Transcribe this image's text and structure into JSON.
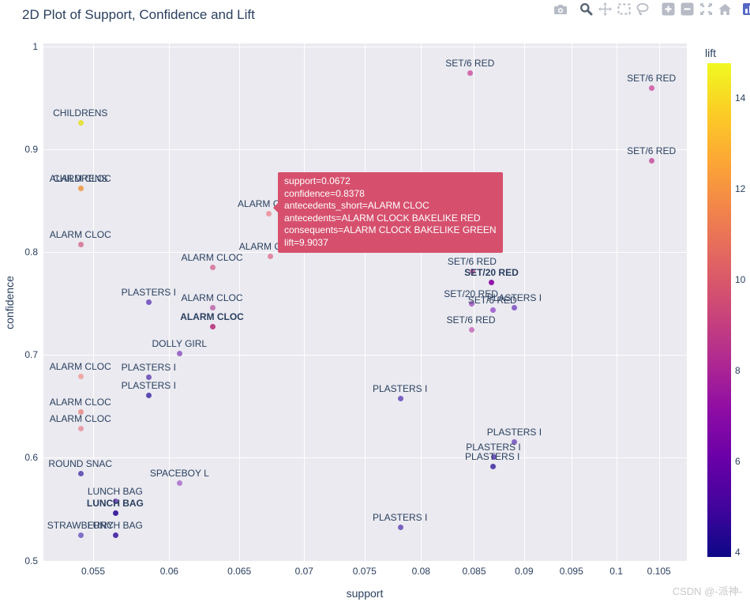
{
  "header": {
    "title": "2D Plot of Support, Confidence and Lift"
  },
  "watermark": {
    "text": "CSDN @-派神-"
  },
  "colors": {
    "text": "#2a3f5f",
    "plot_bg": "#eaeaf0",
    "grid": "#ffffff",
    "tooltip_bg": "#d6506e",
    "modebar_icon": "#b6bbc5",
    "modebar_icon_active": "#5a6576",
    "logo_blue": "#5668c5"
  },
  "chart_data": {
    "type": "scatter",
    "title": "2D Plot of Support, Confidence and Lift",
    "xlabel": "support",
    "ylabel": "confidence",
    "x_scale": "log",
    "x_range": [
      0.05196,
      0.1084
    ],
    "y_range": [
      0.4997,
      1.003
    ],
    "x_ticks": {
      "values": [
        0.055,
        0.06,
        0.065,
        0.07,
        0.075,
        0.08,
        0.085,
        0.09,
        0.095,
        0.1,
        0.105
      ],
      "labels": [
        "0.055",
        "0.06",
        "0.065",
        "0.07",
        "0.075",
        "0.08",
        "0.085",
        "0.09",
        "0.095",
        "0.1",
        "0.105"
      ]
    },
    "y_ticks": {
      "values": [
        0.5,
        0.6,
        0.7,
        0.8,
        0.9,
        1.0
      ],
      "labels": [
        "0.5",
        "0.6",
        "0.7",
        "0.8",
        "0.9",
        "1"
      ]
    },
    "grid": true,
    "colorbar": {
      "title": "lift",
      "range": [
        3.91,
        14.78
      ],
      "ticks": [
        4,
        6,
        8,
        10,
        12,
        14
      ],
      "colormap": "plasma",
      "colors_top_to_bottom": [
        "#f0f921",
        "#fccd25",
        "#fca636",
        "#f1834b",
        "#e16462",
        "#cc4778",
        "#b12a90",
        "#8f0da4",
        "#6a00a8",
        "#41049d",
        "#0d0887"
      ]
    },
    "tooltip": {
      "lines": [
        "support=0.0672",
        "confidence=0.8378",
        "antecedents_short=ALARM CLOC",
        "antecedents=ALARM CLOCK BAKELIKE RED",
        "consequents=ALARM CLOCK BAKELIKE GREEN",
        "lift=9.9037"
      ],
      "lift": 9.9037
    },
    "points": [
      {
        "label": "CHILDRENS",
        "support": 0.0542,
        "confidence": 0.9262,
        "color": "#e5e13e"
      },
      {
        "label": "ALARM CLOC",
        "support": 0.0542,
        "confidence": 0.8624,
        "color": "#efa35b"
      },
      {
        "label": "CHILDRENS",
        "support": 0.0542,
        "confidence": 0.8624,
        "color": "#efa35b"
      },
      {
        "label": "ALARM CLOC",
        "support": 0.0542,
        "confidence": 0.8078,
        "color": "#d9829d"
      },
      {
        "label": "ALARM CLOC",
        "support": 0.063,
        "confidence": 0.7856,
        "color": "#d981a2"
      },
      {
        "label": "ALARM CLOC",
        "support": 0.0672,
        "confidence": 0.8378,
        "color": "#ec9aa6",
        "hovered": true
      },
      {
        "label": "ALARM CLOC",
        "support": 0.0673,
        "confidence": 0.7963,
        "color": "#e089a4"
      },
      {
        "label": "SET/6 RED",
        "support": 0.0846,
        "confidence": 0.9746,
        "color": "#d26bad"
      },
      {
        "label": "SET/6 RED",
        "support": 0.1041,
        "confidence": 0.96,
        "color": "#d26bad"
      },
      {
        "label": "SET/6 RED",
        "support": 0.1041,
        "confidence": 0.8893,
        "color": "#cd66a9"
      },
      {
        "label": "SET/6 RED",
        "support": 0.0848,
        "confidence": 0.7817,
        "color": "#d573ae"
      },
      {
        "label": "SET/20 RED",
        "support": 0.0867,
        "confidence": 0.771,
        "color": "#9016a8",
        "bold": true
      },
      {
        "label": "SET/20 RED",
        "support": 0.0847,
        "confidence": 0.7502,
        "color": "#b06cc8"
      },
      {
        "label": "PLASTERS I",
        "support": 0.089,
        "confidence": 0.7464,
        "color": "#8a63c8"
      },
      {
        "label": "SET/6 RED",
        "support": 0.0868,
        "confidence": 0.7441,
        "color": "#a66bd2"
      },
      {
        "label": "SET/6 RED",
        "support": 0.0847,
        "confidence": 0.7249,
        "color": "#cb7fc4"
      },
      {
        "label": "PLASTERS I",
        "support": 0.0586,
        "confidence": 0.7518,
        "color": "#7b5fc0"
      },
      {
        "label": "ALARM CLOC",
        "support": 0.063,
        "confidence": 0.7464,
        "color": "#c579b2"
      },
      {
        "label": "ALARM CLOC",
        "support": 0.063,
        "confidence": 0.728,
        "color": "#bc4489",
        "bold": true
      },
      {
        "label": "DOLLY GIRL",
        "support": 0.0607,
        "confidence": 0.7018,
        "color": "#9d6ac9"
      },
      {
        "label": "ALARM CLOC",
        "support": 0.0542,
        "confidence": 0.6796,
        "color": "#efa9a5"
      },
      {
        "label": "PLASTERS I",
        "support": 0.0586,
        "confidence": 0.6788,
        "color": "#7b5fc0"
      },
      {
        "label": "PLASTERS I",
        "support": 0.0586,
        "confidence": 0.6611,
        "color": "#5d4ab2"
      },
      {
        "label": "ALARM CLOC",
        "support": 0.0542,
        "confidence": 0.645,
        "color": "#e89898"
      },
      {
        "label": "ALARM CLOC",
        "support": 0.0542,
        "confidence": 0.6288,
        "color": "#e89fab"
      },
      {
        "label": "PLASTERS I",
        "support": 0.0781,
        "confidence": 0.658,
        "color": "#7a62c2"
      },
      {
        "label": "PLASTERS I",
        "support": 0.089,
        "confidence": 0.6158,
        "color": "#8566c4"
      },
      {
        "label": "PLASTERS I",
        "support": 0.0869,
        "confidence": 0.6012,
        "color": "#6d56ba"
      },
      {
        "label": "PLASTERS I",
        "support": 0.0868,
        "confidence": 0.592,
        "color": "#5646ac"
      },
      {
        "label": "ROUND SNAC",
        "support": 0.0542,
        "confidence": 0.585,
        "color": "#6c5bb5"
      },
      {
        "label": "SPACEBOY L",
        "support": 0.0607,
        "confidence": 0.5758,
        "color": "#b57fd0"
      },
      {
        "label": "LUNCH BAG",
        "support": 0.0564,
        "confidence": 0.5582,
        "color": "#7e57c2"
      },
      {
        "label": "LUNCH BAG",
        "support": 0.0564,
        "confidence": 0.5466,
        "color": "#41239d",
        "bold": true
      },
      {
        "label": "STRAWBERRY",
        "support": 0.0542,
        "confidence": 0.5251,
        "color": "#8070c8"
      },
      {
        "label": "LUNCH BAG",
        "support": 0.0564,
        "confidence": 0.5251,
        "color": "#5234ab"
      },
      {
        "label": "PLASTERS I",
        "support": 0.0781,
        "confidence": 0.5328,
        "color": "#7a62c2"
      }
    ]
  }
}
